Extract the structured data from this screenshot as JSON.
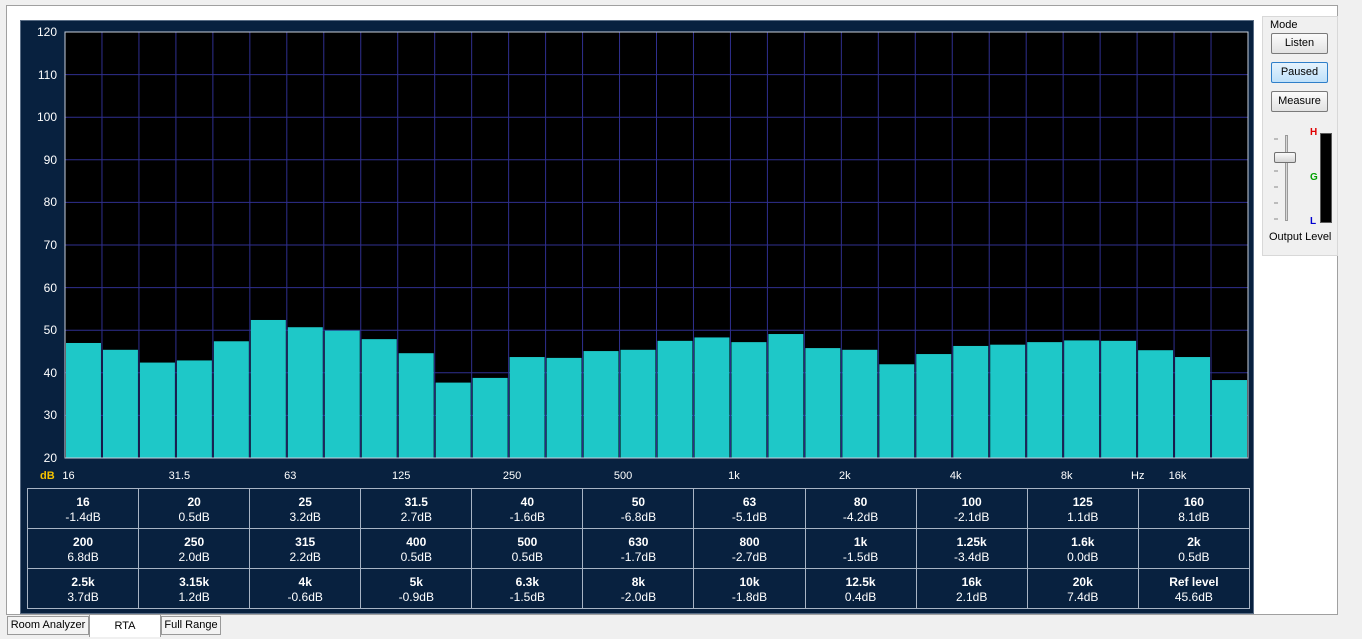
{
  "mode_panel": {
    "title": "Mode",
    "buttons": [
      {
        "label": "Listen",
        "active": false
      },
      {
        "label": "Paused",
        "active": true
      },
      {
        "label": "Measure",
        "active": false
      }
    ],
    "output_label": "Output Level",
    "meter_labels": {
      "high": "H",
      "good": "G",
      "low": "L"
    },
    "meter_colors": {
      "high": "#e00000",
      "good": "#00a000",
      "low": "#0000d0"
    }
  },
  "tabs": [
    {
      "label": "Room Analyzer",
      "selected": false
    },
    {
      "label": "RTA",
      "selected": true
    },
    {
      "label": "Full Range",
      "selected": false
    }
  ],
  "chart_data": {
    "type": "bar",
    "ylim": [
      20,
      120
    ],
    "yticks": [
      20,
      30,
      40,
      50,
      60,
      70,
      80,
      90,
      100,
      110,
      120
    ],
    "y_unit": "dB",
    "x_unit": "Hz",
    "x_tick_labels": [
      "16",
      "31.5",
      "63",
      "125",
      "250",
      "500",
      "1k",
      "2k",
      "4k",
      "8k",
      "16k"
    ],
    "grid": true,
    "bar_color": "#1ec8c8",
    "plot_bg": "#000000",
    "grid_color": "#2f2f8f",
    "values": [
      47.0,
      45.4,
      42.4,
      42.9,
      47.4,
      52.4,
      50.7,
      49.9,
      47.9,
      44.6,
      37.7,
      38.8,
      43.7,
      43.5,
      45.1,
      45.4,
      47.5,
      48.3,
      47.2,
      49.1,
      45.8,
      45.4,
      42.0,
      44.4,
      46.3,
      46.6,
      47.2,
      47.6,
      47.5,
      45.3,
      43.7,
      38.3
    ]
  },
  "table_rows": [
    [
      {
        "freq": "16",
        "val": "-1.4dB"
      },
      {
        "freq": "20",
        "val": "0.5dB"
      },
      {
        "freq": "25",
        "val": "3.2dB"
      },
      {
        "freq": "31.5",
        "val": "2.7dB"
      },
      {
        "freq": "40",
        "val": "-1.6dB"
      },
      {
        "freq": "50",
        "val": "-6.8dB"
      },
      {
        "freq": "63",
        "val": "-5.1dB"
      },
      {
        "freq": "80",
        "val": "-4.2dB"
      },
      {
        "freq": "100",
        "val": "-2.1dB"
      },
      {
        "freq": "125",
        "val": "1.1dB"
      },
      {
        "freq": "160",
        "val": "8.1dB"
      }
    ],
    [
      {
        "freq": "200",
        "val": "6.8dB"
      },
      {
        "freq": "250",
        "val": "2.0dB"
      },
      {
        "freq": "315",
        "val": "2.2dB"
      },
      {
        "freq": "400",
        "val": "0.5dB"
      },
      {
        "freq": "500",
        "val": "0.5dB"
      },
      {
        "freq": "630",
        "val": "-1.7dB"
      },
      {
        "freq": "800",
        "val": "-2.7dB"
      },
      {
        "freq": "1k",
        "val": "-1.5dB"
      },
      {
        "freq": "1.25k",
        "val": "-3.4dB"
      },
      {
        "freq": "1.6k",
        "val": "0.0dB"
      },
      {
        "freq": "2k",
        "val": "0.5dB"
      }
    ],
    [
      {
        "freq": "2.5k",
        "val": "3.7dB"
      },
      {
        "freq": "3.15k",
        "val": "1.2dB"
      },
      {
        "freq": "4k",
        "val": "-0.6dB"
      },
      {
        "freq": "5k",
        "val": "-0.9dB"
      },
      {
        "freq": "6.3k",
        "val": "-1.5dB"
      },
      {
        "freq": "8k",
        "val": "-2.0dB"
      },
      {
        "freq": "10k",
        "val": "-1.8dB"
      },
      {
        "freq": "12.5k",
        "val": "0.4dB"
      },
      {
        "freq": "16k",
        "val": "2.1dB"
      },
      {
        "freq": "20k",
        "val": "7.4dB"
      },
      {
        "freq": "Ref level",
        "val": "45.6dB"
      }
    ]
  ]
}
